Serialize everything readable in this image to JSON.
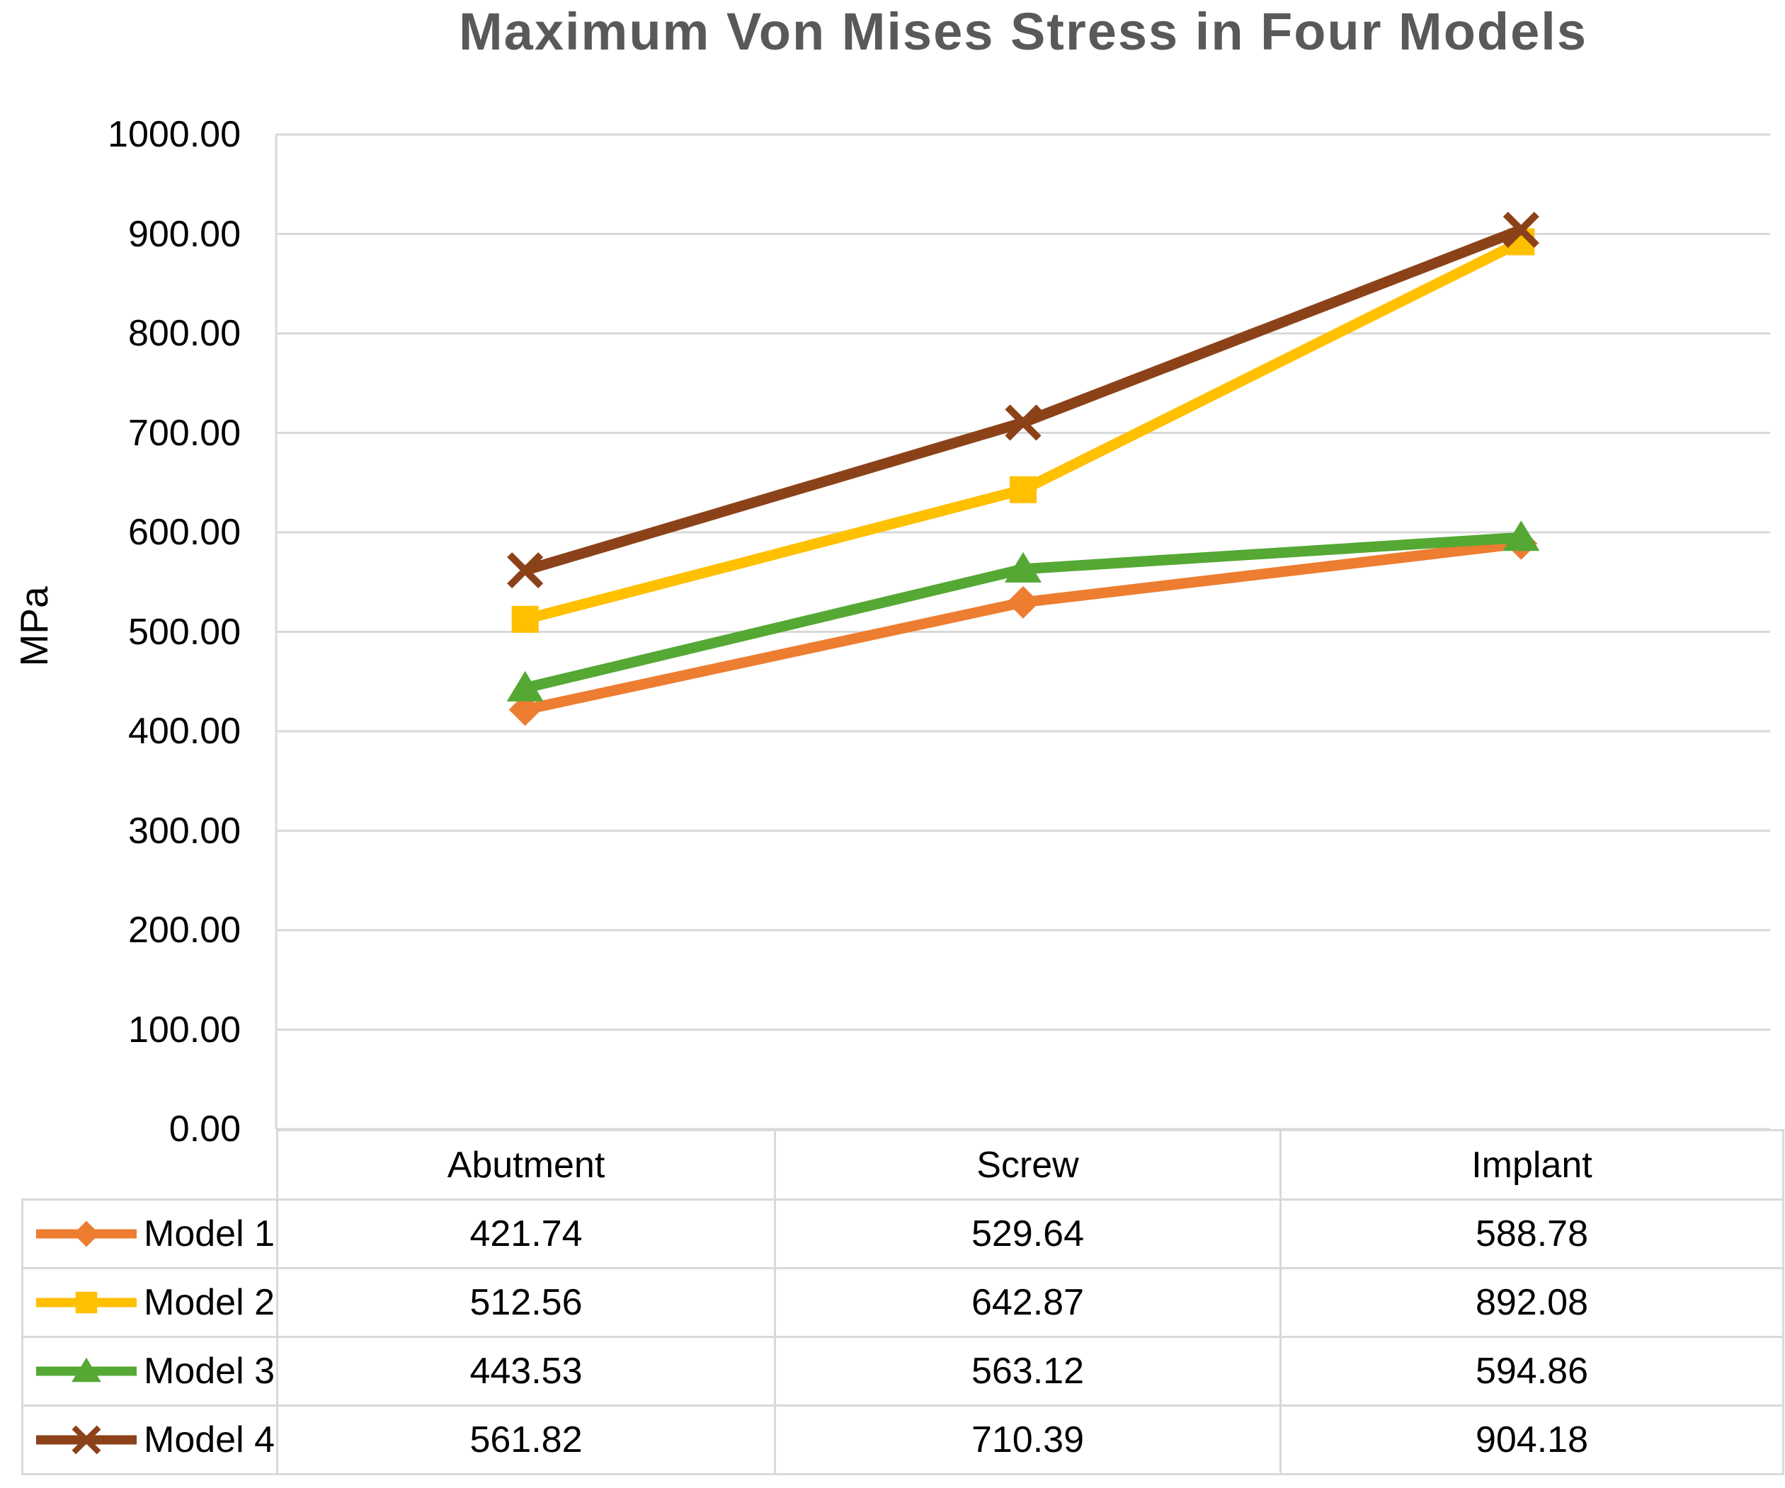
{
  "chart_data": {
    "type": "line",
    "title": "Maximum Von Mises Stress in Four Models",
    "ylabel": "MPa",
    "xlabel": "",
    "categories": [
      "Abutment",
      "Screw",
      "Implant"
    ],
    "series": [
      {
        "name": "Model 1",
        "marker": "diamond",
        "color": "#ED7D31",
        "values": [
          421.74,
          529.64,
          588.78
        ]
      },
      {
        "name": "Model 2",
        "marker": "square",
        "color": "#FFC000",
        "values": [
          512.56,
          642.87,
          892.08
        ]
      },
      {
        "name": "Model 3",
        "marker": "triangle",
        "color": "#55A834",
        "values": [
          443.53,
          563.12,
          594.86
        ]
      },
      {
        "name": "Model 4",
        "marker": "x",
        "color": "#8C4219",
        "values": [
          561.82,
          710.39,
          904.18
        ]
      }
    ],
    "ylim": [
      0,
      1000
    ],
    "ytick_step": 100,
    "ytick_decimals": 2,
    "grid": "horizontal",
    "gridline_color": "#D9D9D9",
    "title_color": "#595959",
    "legend_position": "left-of-data-table",
    "data_table_shown": true
  }
}
